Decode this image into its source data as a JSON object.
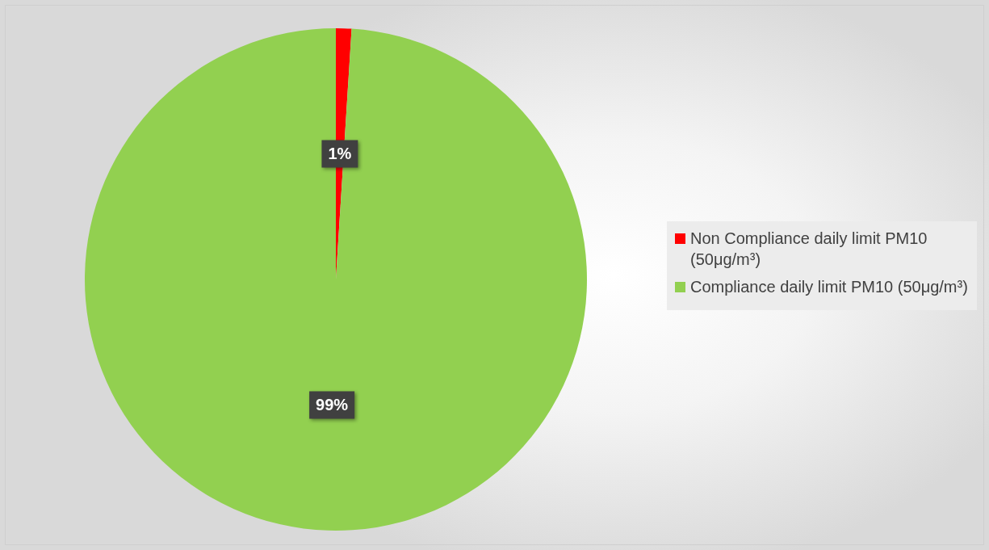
{
  "chart_data": {
    "type": "pie",
    "categories": [
      "Non Compliance daily limit PM10 (50μg/m³)",
      "Compliance daily limit PM10 (50μg/m³)"
    ],
    "values": [
      1,
      99
    ],
    "colors": [
      "#ff0000",
      "#92d050"
    ],
    "value_labels": [
      "1%",
      "99%"
    ],
    "legend": "right"
  }
}
